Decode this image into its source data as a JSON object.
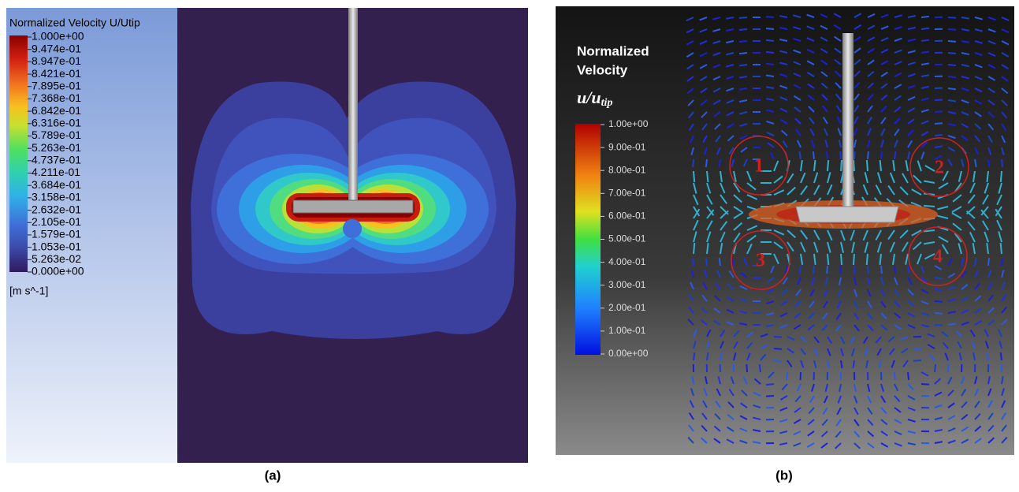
{
  "panel_a": {
    "legend_title": "Normalized Velocity U/Utip",
    "legend_labels": [
      "1.000e+00",
      "9.474e-01",
      "8.947e-01",
      "8.421e-01",
      "7.895e-01",
      "7.368e-01",
      "6.842e-01",
      "6.316e-01",
      "5.789e-01",
      "5.263e-01",
      "4.737e-01",
      "4.211e-01",
      "3.684e-01",
      "3.158e-01",
      "2.632e-01",
      "2.105e-01",
      "1.579e-01",
      "1.053e-01",
      "5.263e-02",
      "0.000e+00"
    ],
    "unit": "[m s^-1]",
    "caption": "(a)"
  },
  "panel_b": {
    "legend_title_lines": [
      "Normalized",
      "Velocity"
    ],
    "legend_symbol": "u",
    "legend_symbol_sub": "tip",
    "legend_symbol_sep": "/",
    "legend_labels": [
      "1.00e+00",
      "9.00e-01",
      "8.00e-01",
      "7.00e-01",
      "6.00e-01",
      "5.00e-01",
      "4.00e-01",
      "3.00e-01",
      "2.00e-01",
      "1.00e-01",
      "0.00e+00"
    ],
    "vortex_labels": [
      "1",
      "2",
      "3",
      "4"
    ],
    "caption": "(b)"
  }
}
